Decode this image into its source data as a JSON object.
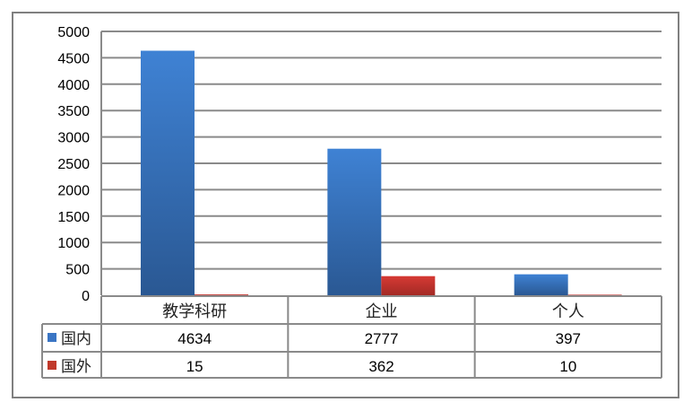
{
  "chart_data": {
    "type": "bar",
    "categories": [
      "教学科研",
      "企业",
      "个人"
    ],
    "series": [
      {
        "name": "国内",
        "values": [
          4634,
          2777,
          397
        ],
        "color": "#3a75c4"
      },
      {
        "name": "国外",
        "values": [
          15,
          362,
          10
        ],
        "color": "#c0392b"
      }
    ],
    "ylim": [
      0,
      5000
    ],
    "yticks": [
      "0",
      "500",
      "1000",
      "1500",
      "2000",
      "2500",
      "3000",
      "3500",
      "4000",
      "4500",
      "5000"
    ],
    "grid": true,
    "legend": "data-table"
  }
}
